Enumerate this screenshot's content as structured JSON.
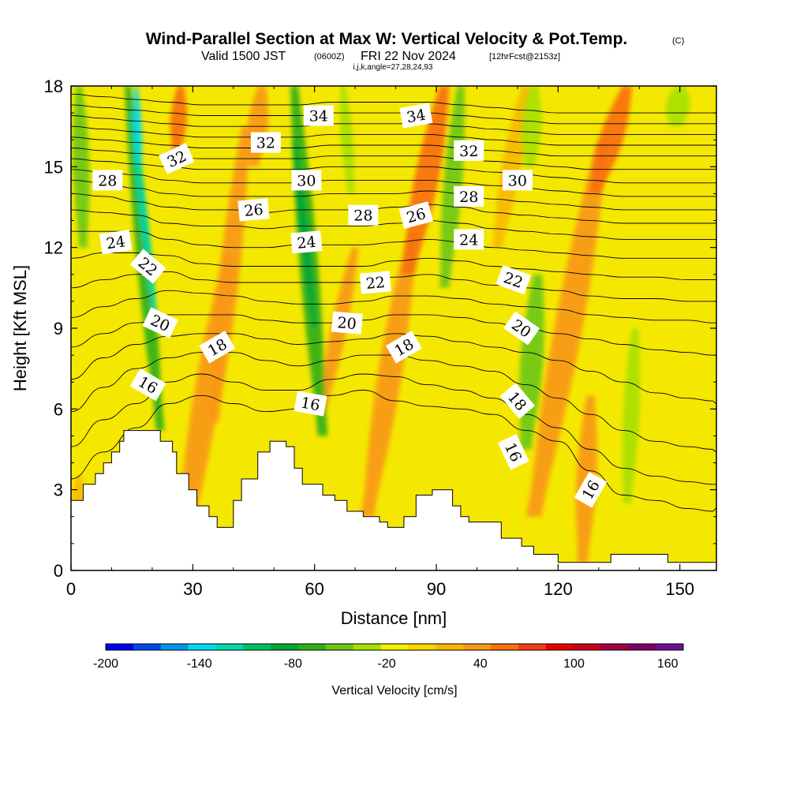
{
  "chart_data": {
    "type": "heatmap",
    "title": "Wind-Parallel Section at Max W: Vertical Velocity & Pot.Temp.",
    "title_mark": "(C)",
    "subtitle": {
      "valid": "Valid 1500 JST",
      "utc": "(0600Z)",
      "date": "FRI 22 Nov 2024",
      "fcst": "[12hrFcst@2153z]"
    },
    "grid_info": "i,j,k,angle=27,28,24,93",
    "xlabel": "Distance [nm]",
    "ylabel": "Height [Kft MSL]",
    "xlim": [
      0,
      159
    ],
    "ylim": [
      0,
      18
    ],
    "x_ticks": [
      "0",
      "30",
      "60",
      "90",
      "120",
      "150"
    ],
    "y_ticks": [
      "0",
      "3",
      "6",
      "9",
      "12",
      "15",
      "18"
    ],
    "colorbar": {
      "label": "Vertical Velocity [cm/s]",
      "tick_labels": [
        "-200",
        "-140",
        "-80",
        "-20",
        "40",
        "100",
        "160"
      ],
      "tick_values": [
        -200,
        -140,
        -80,
        -20,
        40,
        100,
        160
      ],
      "range": [
        -200,
        170
      ],
      "colors": [
        "#0000f0",
        "#0048e8",
        "#0096e8",
        "#00dcf0",
        "#00d8a8",
        "#00c060",
        "#00a838",
        "#30b018",
        "#6cc818",
        "#a8e000",
        "#f0f000",
        "#f8d800",
        "#f8b800",
        "#f89818",
        "#f87010",
        "#f04010",
        "#e80000",
        "#c80018",
        "#a00040",
        "#800068",
        "#6c1090"
      ]
    },
    "terrain": [
      [
        0,
        2.6
      ],
      [
        3,
        2.6
      ],
      [
        3,
        3.2
      ],
      [
        6,
        3.2
      ],
      [
        6,
        3.6
      ],
      [
        8,
        3.6
      ],
      [
        8,
        4.0
      ],
      [
        10,
        4.0
      ],
      [
        10,
        4.4
      ],
      [
        12,
        4.4
      ],
      [
        12,
        4.8
      ],
      [
        13,
        4.8
      ],
      [
        13,
        5.2
      ],
      [
        22,
        5.2
      ],
      [
        22,
        4.8
      ],
      [
        25,
        4.8
      ],
      [
        25,
        4.4
      ],
      [
        26,
        4.4
      ],
      [
        26,
        3.6
      ],
      [
        29,
        3.6
      ],
      [
        29,
        3.0
      ],
      [
        31,
        3.0
      ],
      [
        31,
        2.4
      ],
      [
        34,
        2.4
      ],
      [
        34,
        2.0
      ],
      [
        36,
        2.0
      ],
      [
        36,
        1.6
      ],
      [
        40,
        1.6
      ],
      [
        40,
        2.6
      ],
      [
        42,
        2.6
      ],
      [
        42,
        3.4
      ],
      [
        46,
        3.4
      ],
      [
        46,
        4.4
      ],
      [
        49,
        4.4
      ],
      [
        49,
        4.8
      ],
      [
        53,
        4.8
      ],
      [
        53,
        4.6
      ],
      [
        55,
        4.6
      ],
      [
        55,
        3.8
      ],
      [
        57,
        3.8
      ],
      [
        57,
        3.2
      ],
      [
        62,
        3.2
      ],
      [
        62,
        2.8
      ],
      [
        65,
        2.8
      ],
      [
        65,
        2.6
      ],
      [
        68,
        2.6
      ],
      [
        68,
        2.2
      ],
      [
        72,
        2.2
      ],
      [
        72,
        2.0
      ],
      [
        76,
        2.0
      ],
      [
        76,
        1.8
      ],
      [
        78,
        1.8
      ],
      [
        78,
        1.6
      ],
      [
        82,
        1.6
      ],
      [
        82,
        2.0
      ],
      [
        85,
        2.0
      ],
      [
        85,
        2.8
      ],
      [
        89,
        2.8
      ],
      [
        89,
        3.0
      ],
      [
        94,
        3.0
      ],
      [
        94,
        2.4
      ],
      [
        96,
        2.4
      ],
      [
        96,
        2.0
      ],
      [
        98,
        2.0
      ],
      [
        98,
        1.8
      ],
      [
        106,
        1.8
      ],
      [
        106,
        1.2
      ],
      [
        111,
        1.2
      ],
      [
        111,
        0.9
      ],
      [
        114,
        0.9
      ],
      [
        114,
        0.6
      ],
      [
        120,
        0.6
      ],
      [
        120,
        0.3
      ],
      [
        133,
        0.3
      ],
      [
        133,
        0.6
      ],
      [
        147,
        0.6
      ],
      [
        147,
        0.3
      ],
      [
        159,
        0.3
      ]
    ],
    "updrafts": [
      {
        "x": [
          27,
          39
        ],
        "y": [
          0.5,
          11.8
        ],
        "w": 3.2,
        "v": 45
      },
      {
        "x": [
          35,
          43
        ],
        "y": [
          5.5,
          16.5
        ],
        "w": 2.5,
        "v": 35
      },
      {
        "x": [
          26,
          27
        ],
        "y": [
          15.5,
          18
        ],
        "w": 2.0,
        "v": 55
      },
      {
        "x": [
          73,
          84
        ],
        "y": [
          2.0,
          12.5
        ],
        "w": 3.0,
        "v": 42
      },
      {
        "x": [
          83,
          92
        ],
        "y": [
          11,
          18
        ],
        "w": 3.0,
        "v": 50
      },
      {
        "x": [
          105,
          112
        ],
        "y": [
          12,
          18
        ],
        "w": 2.4,
        "v": 28
      },
      {
        "x": [
          114,
          131
        ],
        "y": [
          2,
          16
        ],
        "w": 3.5,
        "v": 30
      },
      {
        "x": [
          129,
          137
        ],
        "y": [
          14,
          18
        ],
        "w": 3.0,
        "v": 50
      },
      {
        "x": [
          126,
          128
        ],
        "y": [
          0.3,
          6.5
        ],
        "w": 2.5,
        "v": 42
      },
      {
        "x": [
          62,
          70
        ],
        "y": [
          6,
          12
        ],
        "w": 2.0,
        "v": 30
      },
      {
        "x": [
          45,
          47
        ],
        "y": [
          15,
          18
        ],
        "w": 2.5,
        "v": 30
      },
      {
        "x": [
          1,
          2
        ],
        "y": [
          0.5,
          3.5
        ],
        "w": 1.8,
        "v": 25
      }
    ],
    "downdrafts": [
      {
        "x": [
          22,
          14
        ],
        "y": [
          5.2,
          18
        ],
        "w": 1.9,
        "v": -70
      },
      {
        "x": [
          21,
          15
        ],
        "y": [
          9,
          17
        ],
        "w": 1.0,
        "v": -120
      },
      {
        "x": [
          17,
          16
        ],
        "y": [
          15,
          18
        ],
        "w": 0.9,
        "v": -140
      },
      {
        "x": [
          3,
          2
        ],
        "y": [
          12,
          18
        ],
        "w": 2.0,
        "v": -55
      },
      {
        "x": [
          62,
          55
        ],
        "y": [
          5,
          18
        ],
        "w": 2.3,
        "v": -60
      },
      {
        "x": [
          60,
          55
        ],
        "y": [
          9,
          16
        ],
        "w": 1.2,
        "v": -85
      },
      {
        "x": [
          92,
          96
        ],
        "y": [
          10.5,
          18
        ],
        "w": 2.3,
        "v": -50
      },
      {
        "x": [
          112,
          115
        ],
        "y": [
          4.5,
          11
        ],
        "w": 2.8,
        "v": -45
      },
      {
        "x": [
          137,
          139
        ],
        "y": [
          2.5,
          9
        ],
        "w": 2.0,
        "v": -40
      },
      {
        "x": [
          113,
          114
        ],
        "y": [
          15,
          18
        ],
        "w": 2.5,
        "v": -40
      },
      {
        "x": [
          149,
          150
        ],
        "y": [
          16.5,
          18
        ],
        "w": 3.0,
        "v": -35
      },
      {
        "x": [
          69,
          67
        ],
        "y": [
          14,
          18
        ],
        "w": 1.5,
        "v": -35
      }
    ],
    "isentropes": [
      {
        "theta": 16,
        "y": [
          3.4,
          4.4,
          5.3,
          6.2,
          6.5,
          6.2,
          5.9,
          6.0,
          6.5,
          6.7,
          6.3,
          6.1,
          6.0,
          5.8,
          5.2,
          4.8,
          3.7,
          2.8,
          2.6,
          2.3,
          2.2,
          2.3
        ]
      },
      {
        "theta": 17,
        "y": [
          4.6,
          5.6,
          6.2,
          7.0,
          7.3,
          7.0,
          6.7,
          6.7,
          7.1,
          7.3,
          7.2,
          6.9,
          6.7,
          6.4,
          5.8,
          5.3,
          4.5,
          3.8,
          3.5,
          3.3,
          3.2,
          3.2
        ]
      },
      {
        "theta": 18,
        "y": [
          5.9,
          6.8,
          7.5,
          7.9,
          8.1,
          8.1,
          7.8,
          7.6,
          7.8,
          8.0,
          8.0,
          7.8,
          7.6,
          7.4,
          6.9,
          6.4,
          5.8,
          5.2,
          4.8,
          4.6,
          4.5,
          4.4
        ]
      },
      {
        "theta": 19,
        "y": [
          7.1,
          7.9,
          8.4,
          8.7,
          8.8,
          8.8,
          8.6,
          8.4,
          8.5,
          8.6,
          8.8,
          8.7,
          8.5,
          8.3,
          8.1,
          7.8,
          7.4,
          7.0,
          6.6,
          6.4,
          6.3,
          6.2
        ]
      },
      {
        "theta": 20,
        "y": [
          8.3,
          8.8,
          9.2,
          9.5,
          9.5,
          9.5,
          9.3,
          9.2,
          9.2,
          9.3,
          9.5,
          9.5,
          9.4,
          9.2,
          9.0,
          8.8,
          8.6,
          8.4,
          8.2,
          8.1,
          8.0,
          8.0
        ]
      },
      {
        "theta": 21,
        "y": [
          9.4,
          9.8,
          10.1,
          10.4,
          10.3,
          10.2,
          10.0,
          9.9,
          9.9,
          10.0,
          10.2,
          10.2,
          10.1,
          9.9,
          9.8,
          9.7,
          9.5,
          9.4,
          9.3,
          9.3,
          9.2,
          9.2
        ]
      },
      {
        "theta": 22,
        "y": [
          10.5,
          10.8,
          11.0,
          11.1,
          10.8,
          10.7,
          10.7,
          10.7,
          10.7,
          10.7,
          10.9,
          11.0,
          10.8,
          10.6,
          10.5,
          10.4,
          10.2,
          10.1,
          10.1,
          10.0,
          10.0,
          10.0
        ]
      },
      {
        "theta": 23,
        "y": [
          11.6,
          11.8,
          11.8,
          11.7,
          11.4,
          11.3,
          11.3,
          11.3,
          11.3,
          11.3,
          11.5,
          11.6,
          11.5,
          11.3,
          11.2,
          11.1,
          11.0,
          10.9,
          10.9,
          10.8,
          10.8,
          10.8
        ]
      },
      {
        "theta": 24,
        "y": [
          12.6,
          12.6,
          12.6,
          12.3,
          12.1,
          12.0,
          12.0,
          12.1,
          12.1,
          12.1,
          12.2,
          12.3,
          12.2,
          12.0,
          11.9,
          11.8,
          11.7,
          11.6,
          11.6,
          11.6,
          11.6,
          11.6
        ]
      },
      {
        "theta": 25,
        "y": [
          13.4,
          13.3,
          13.2,
          12.9,
          12.8,
          12.8,
          12.7,
          12.8,
          12.8,
          12.8,
          12.9,
          13.0,
          12.9,
          12.7,
          12.6,
          12.5,
          12.4,
          12.3,
          12.3,
          12.3,
          12.3,
          12.3
        ]
      },
      {
        "theta": 26,
        "y": [
          14.0,
          13.9,
          13.7,
          13.5,
          13.4,
          13.4,
          13.3,
          13.4,
          13.4,
          13.4,
          13.5,
          13.6,
          13.5,
          13.3,
          13.2,
          13.1,
          13.0,
          12.9,
          12.9,
          12.9,
          12.9,
          12.9
        ]
      },
      {
        "theta": 27,
        "y": [
          14.5,
          14.4,
          14.2,
          14.0,
          13.9,
          13.9,
          13.9,
          13.9,
          14.0,
          14.0,
          14.0,
          14.1,
          14.0,
          13.8,
          13.7,
          13.6,
          13.5,
          13.4,
          13.4,
          13.4,
          13.4,
          13.4
        ]
      },
      {
        "theta": 28,
        "y": [
          14.9,
          14.8,
          14.7,
          14.5,
          14.4,
          14.4,
          14.4,
          14.4,
          14.5,
          14.5,
          14.5,
          14.5,
          14.4,
          14.3,
          14.2,
          14.1,
          14.0,
          13.9,
          13.9,
          13.9,
          13.9,
          13.9
        ]
      },
      {
        "theta": 29,
        "y": [
          15.3,
          15.2,
          15.1,
          15.0,
          14.9,
          14.9,
          14.9,
          14.9,
          15.0,
          15.0,
          15.0,
          15.0,
          14.9,
          14.8,
          14.7,
          14.6,
          14.5,
          14.4,
          14.4,
          14.4,
          14.4,
          14.4
        ]
      },
      {
        "theta": 30,
        "y": [
          15.7,
          15.6,
          15.5,
          15.4,
          15.3,
          15.3,
          15.3,
          15.3,
          15.4,
          15.4,
          15.4,
          15.4,
          15.3,
          15.2,
          15.1,
          15.0,
          14.9,
          14.9,
          14.9,
          14.9,
          14.9,
          14.9
        ]
      },
      {
        "theta": 31,
        "y": [
          16.1,
          16.0,
          15.9,
          15.8,
          15.7,
          15.7,
          15.7,
          15.7,
          15.8,
          15.8,
          15.8,
          15.8,
          15.7,
          15.6,
          15.5,
          15.4,
          15.4,
          15.4,
          15.4,
          15.4,
          15.4,
          15.4
        ]
      },
      {
        "theta": 32,
        "y": [
          16.5,
          16.4,
          16.3,
          16.2,
          16.1,
          16.1,
          16.1,
          16.1,
          16.2,
          16.2,
          16.2,
          16.2,
          16.1,
          16.0,
          15.9,
          15.8,
          15.8,
          15.8,
          15.8,
          15.8,
          15.8,
          15.8
        ]
      },
      {
        "theta": 33,
        "y": [
          16.9,
          16.8,
          16.7,
          16.6,
          16.5,
          16.5,
          16.5,
          16.5,
          16.6,
          16.6,
          16.6,
          16.6,
          16.5,
          16.4,
          16.3,
          16.2,
          16.2,
          16.2,
          16.2,
          16.2,
          16.2,
          16.2
        ]
      },
      {
        "theta": 34,
        "y": [
          17.3,
          17.2,
          17.1,
          17.0,
          16.9,
          16.9,
          16.9,
          16.9,
          17.0,
          17.0,
          17.0,
          17.0,
          16.9,
          16.8,
          16.7,
          16.6,
          16.6,
          16.6,
          16.6,
          16.6,
          16.6,
          16.6
        ]
      },
      {
        "theta": 35,
        "y": [
          17.7,
          17.6,
          17.5,
          17.4,
          17.3,
          17.3,
          17.3,
          17.3,
          17.4,
          17.4,
          17.4,
          17.4,
          17.3,
          17.2,
          17.1,
          17.0,
          17.0,
          17.0,
          17.0,
          17.0,
          17.0,
          17.0
        ]
      }
    ],
    "isentrope_x": [
      0,
      8,
      16,
      24,
      32,
      40,
      48,
      56,
      64,
      72,
      80,
      88,
      96,
      104,
      112,
      120,
      128,
      136,
      144,
      152,
      158,
      159
    ],
    "contour_labels": [
      {
        "text": "28",
        "x": 9,
        "y": 14.5,
        "a": 0
      },
      {
        "text": "24",
        "x": 11,
        "y": 12.2,
        "a": -8
      },
      {
        "text": "32",
        "x": 26,
        "y": 15.3,
        "a": -25
      },
      {
        "text": "22",
        "x": 19,
        "y": 11.3,
        "a": 40
      },
      {
        "text": "20",
        "x": 22,
        "y": 9.2,
        "a": 25
      },
      {
        "text": "16",
        "x": 19,
        "y": 6.9,
        "a": 30
      },
      {
        "text": "18",
        "x": 36,
        "y": 8.3,
        "a": -30
      },
      {
        "text": "26",
        "x": 45,
        "y": 13.4,
        "a": -5
      },
      {
        "text": "32",
        "x": 48,
        "y": 15.9,
        "a": 0
      },
      {
        "text": "24",
        "x": 58,
        "y": 12.2,
        "a": -5
      },
      {
        "text": "30",
        "x": 58,
        "y": 14.5,
        "a": 0
      },
      {
        "text": "34",
        "x": 61,
        "y": 16.9,
        "a": 0
      },
      {
        "text": "16",
        "x": 59,
        "y": 6.2,
        "a": 10
      },
      {
        "text": "20",
        "x": 68,
        "y": 9.2,
        "a": 5
      },
      {
        "text": "28",
        "x": 72,
        "y": 13.2,
        "a": 0
      },
      {
        "text": "22",
        "x": 75,
        "y": 10.7,
        "a": -5
      },
      {
        "text": "18",
        "x": 82,
        "y": 8.3,
        "a": -30
      },
      {
        "text": "26",
        "x": 85,
        "y": 13.2,
        "a": -15
      },
      {
        "text": "34",
        "x": 85,
        "y": 16.9,
        "a": -10
      },
      {
        "text": "24",
        "x": 98,
        "y": 12.3,
        "a": 0
      },
      {
        "text": "28",
        "x": 98,
        "y": 13.9,
        "a": 0
      },
      {
        "text": "32",
        "x": 98,
        "y": 15.6,
        "a": 0
      },
      {
        "text": "30",
        "x": 110,
        "y": 14.5,
        "a": 0
      },
      {
        "text": "22",
        "x": 109,
        "y": 10.8,
        "a": 20
      },
      {
        "text": "20",
        "x": 111,
        "y": 9.0,
        "a": 35
      },
      {
        "text": "18",
        "x": 110,
        "y": 6.3,
        "a": 50
      },
      {
        "text": "16",
        "x": 109,
        "y": 4.4,
        "a": 65
      },
      {
        "text": "16",
        "x": 128,
        "y": 3.0,
        "a": -60
      }
    ]
  }
}
